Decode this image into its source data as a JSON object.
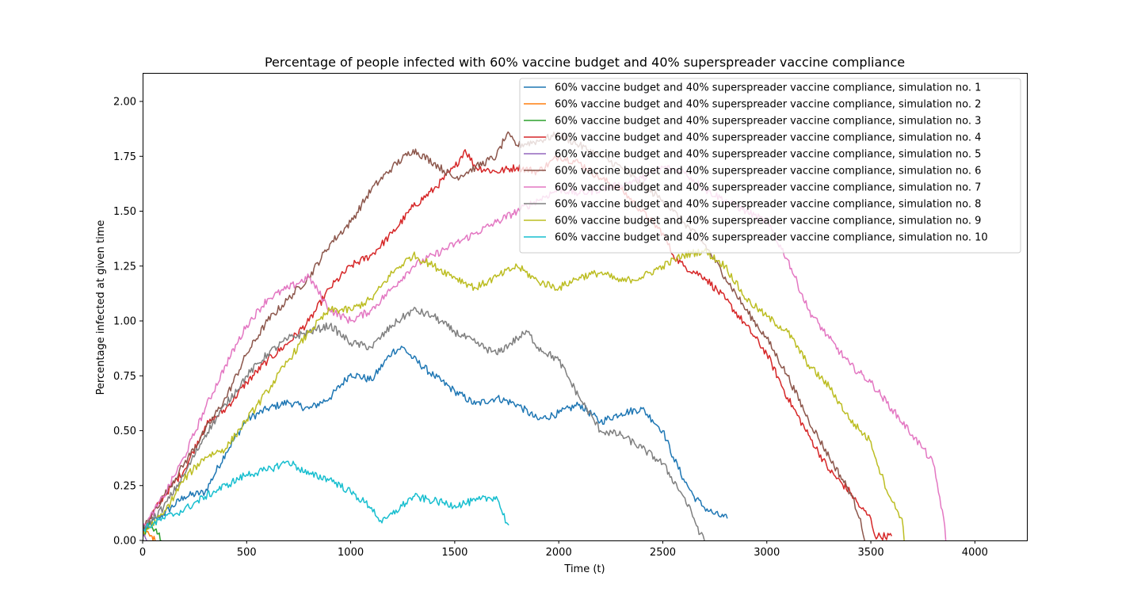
{
  "chart_data": {
    "type": "line",
    "title": "Percentage of people infected with 60% vaccine budget and 40% superspreader vaccine compliance",
    "xlabel": "Time (t)",
    "ylabel": "Percentage infected at given time",
    "xlim": [
      0,
      4250
    ],
    "ylim": [
      0,
      2.13
    ],
    "xticks": [
      0,
      500,
      1000,
      1500,
      2000,
      2500,
      3000,
      3500,
      4000
    ],
    "yticks": [
      0.0,
      0.25,
      0.5,
      0.75,
      1.0,
      1.25,
      1.5,
      1.75,
      2.0
    ],
    "xtick_labels": [
      "0",
      "500",
      "1000",
      "1500",
      "2000",
      "2500",
      "3000",
      "3500",
      "4000"
    ],
    "ytick_labels": [
      "0.00",
      "0.25",
      "0.50",
      "0.75",
      "1.00",
      "1.25",
      "1.50",
      "1.75",
      "2.00"
    ],
    "grid": false,
    "legend_position": "upper-right",
    "series": [
      {
        "name": "60% vaccine budget and 40% superspreader vaccine compliance, simulation no. 1",
        "color": "#1f77b4",
        "x": [
          0,
          100,
          200,
          300,
          400,
          500,
          600,
          700,
          800,
          900,
          1000,
          1100,
          1200,
          1250,
          1300,
          1400,
          1500,
          1600,
          1700,
          1800,
          1900,
          2000,
          2100,
          2200,
          2300,
          2400,
          2450,
          2500,
          2550,
          2600,
          2650,
          2700,
          2750,
          2810
        ],
        "y": [
          0.05,
          0.12,
          0.2,
          0.22,
          0.4,
          0.55,
          0.6,
          0.63,
          0.6,
          0.65,
          0.76,
          0.73,
          0.86,
          0.88,
          0.83,
          0.75,
          0.68,
          0.62,
          0.65,
          0.62,
          0.55,
          0.58,
          0.62,
          0.54,
          0.58,
          0.6,
          0.55,
          0.5,
          0.38,
          0.28,
          0.2,
          0.15,
          0.12,
          0.1
        ]
      },
      {
        "name": "60% vaccine budget and 40% superspreader vaccine compliance, simulation no. 2",
        "color": "#ff7f0e",
        "x": [
          0,
          15,
          30,
          45,
          60
        ],
        "y": [
          0.02,
          0.04,
          0.03,
          0.02,
          0.0
        ]
      },
      {
        "name": "60% vaccine budget and 40% superspreader vaccine compliance, simulation no. 3",
        "color": "#2ca02c",
        "x": [
          0,
          20,
          40,
          60,
          75,
          90
        ],
        "y": [
          0.02,
          0.06,
          0.08,
          0.05,
          0.03,
          0.0
        ]
      },
      {
        "name": "60% vaccine budget and 40% superspreader vaccine compliance, simulation no. 4",
        "color": "#d62728",
        "x": [
          0,
          100,
          200,
          300,
          400,
          500,
          600,
          700,
          800,
          900,
          1000,
          1100,
          1200,
          1300,
          1400,
          1500,
          1550,
          1600,
          1700,
          1800,
          1900,
          2000,
          2100,
          2200,
          2300,
          2400,
          2500,
          2550,
          2600,
          2700,
          2800,
          2900,
          3000,
          3100,
          3200,
          3300,
          3400,
          3450,
          3500,
          3520,
          3600
        ],
        "y": [
          0.05,
          0.2,
          0.32,
          0.52,
          0.6,
          0.72,
          0.82,
          0.9,
          1.0,
          1.15,
          1.25,
          1.3,
          1.4,
          1.52,
          1.6,
          1.7,
          1.78,
          1.7,
          1.68,
          1.7,
          1.68,
          1.75,
          1.72,
          1.65,
          1.6,
          1.5,
          1.4,
          1.3,
          1.25,
          1.2,
          1.1,
          0.98,
          0.85,
          0.65,
          0.48,
          0.32,
          0.22,
          0.15,
          0.1,
          0.02,
          0.02
        ]
      },
      {
        "name": "60% vaccine budget and 40% superspreader vaccine compliance, simulation no. 5",
        "color": "#9467bd",
        "x": [
          0,
          10,
          20
        ],
        "y": [
          0.01,
          0.02,
          0.0
        ]
      },
      {
        "name": "60% vaccine budget and 40% superspreader vaccine compliance, simulation no. 6",
        "color": "#8c564b",
        "x": [
          0,
          100,
          200,
          300,
          400,
          500,
          600,
          700,
          800,
          900,
          1000,
          1100,
          1200,
          1300,
          1400,
          1500,
          1600,
          1700,
          1750,
          1800,
          1900,
          2000,
          2100,
          2200,
          2300,
          2400,
          2500,
          2550,
          2600,
          2700,
          2800,
          2900,
          3000,
          3100,
          3200,
          3300,
          3400,
          3450,
          3470
        ],
        "y": [
          0.05,
          0.2,
          0.35,
          0.5,
          0.65,
          0.85,
          1.0,
          1.1,
          1.2,
          1.35,
          1.45,
          1.6,
          1.7,
          1.78,
          1.72,
          1.65,
          1.7,
          1.75,
          1.85,
          1.8,
          1.82,
          1.85,
          1.8,
          1.75,
          1.7,
          1.62,
          1.55,
          1.5,
          1.45,
          1.35,
          1.2,
          1.05,
          0.92,
          0.75,
          0.55,
          0.38,
          0.22,
          0.1,
          0.0
        ]
      },
      {
        "name": "60% vaccine budget and 40% superspreader vaccine compliance, simulation no. 7",
        "color": "#e377c2",
        "x": [
          0,
          100,
          200,
          300,
          400,
          500,
          600,
          700,
          800,
          900,
          1000,
          1100,
          1200,
          1300,
          1400,
          1500,
          1600,
          1700,
          1800,
          1900,
          2000,
          2100,
          2200,
          2300,
          2400,
          2500,
          2600,
          2700,
          2800,
          2900,
          3000,
          3100,
          3200,
          3300,
          3400,
          3500,
          3600,
          3700,
          3750,
          3800,
          3850,
          3860
        ],
        "y": [
          0.05,
          0.2,
          0.38,
          0.6,
          0.8,
          0.98,
          1.1,
          1.15,
          1.2,
          1.05,
          1.0,
          1.05,
          1.15,
          1.25,
          1.3,
          1.35,
          1.4,
          1.45,
          1.5,
          1.55,
          1.6,
          1.58,
          1.6,
          1.62,
          1.65,
          1.7,
          1.68,
          1.6,
          1.55,
          1.5,
          1.45,
          1.28,
          1.05,
          0.92,
          0.8,
          0.72,
          0.6,
          0.48,
          0.42,
          0.35,
          0.1,
          0.0
        ]
      },
      {
        "name": "60% vaccine budget and 40% superspreader vaccine compliance, simulation no. 8",
        "color": "#7f7f7f",
        "x": [
          0,
          100,
          200,
          300,
          400,
          500,
          600,
          700,
          800,
          900,
          1000,
          1100,
          1200,
          1300,
          1400,
          1500,
          1600,
          1700,
          1800,
          1850,
          1900,
          2000,
          2100,
          2200,
          2300,
          2400,
          2500,
          2600,
          2650,
          2680,
          2700
        ],
        "y": [
          0.05,
          0.15,
          0.3,
          0.48,
          0.62,
          0.75,
          0.85,
          0.92,
          0.95,
          0.98,
          0.9,
          0.88,
          0.98,
          1.05,
          1.02,
          0.95,
          0.9,
          0.85,
          0.92,
          0.95,
          0.88,
          0.82,
          0.65,
          0.5,
          0.48,
          0.42,
          0.35,
          0.2,
          0.1,
          0.03,
          0.0
        ]
      },
      {
        "name": "60% vaccine budget and 40% superspreader vaccine compliance, simulation no. 9",
        "color": "#bcbd22",
        "x": [
          0,
          100,
          200,
          300,
          400,
          500,
          600,
          700,
          800,
          900,
          1000,
          1100,
          1200,
          1300,
          1400,
          1500,
          1600,
          1700,
          1800,
          1900,
          2000,
          2100,
          2200,
          2300,
          2400,
          2500,
          2600,
          2700,
          2800,
          2900,
          3000,
          3100,
          3200,
          3300,
          3400,
          3500,
          3550,
          3600,
          3650,
          3660
        ],
        "y": [
          0.03,
          0.12,
          0.28,
          0.38,
          0.42,
          0.55,
          0.68,
          0.82,
          0.95,
          1.05,
          1.05,
          1.1,
          1.22,
          1.3,
          1.25,
          1.2,
          1.15,
          1.2,
          1.25,
          1.18,
          1.15,
          1.2,
          1.22,
          1.18,
          1.2,
          1.25,
          1.3,
          1.32,
          1.25,
          1.1,
          1.02,
          0.95,
          0.8,
          0.7,
          0.55,
          0.45,
          0.3,
          0.18,
          0.1,
          0.0
        ]
      },
      {
        "name": "60% vaccine budget and 40% superspreader vaccine compliance, simulation no. 10",
        "color": "#17becf",
        "x": [
          0,
          100,
          200,
          300,
          400,
          500,
          600,
          700,
          800,
          900,
          1000,
          1100,
          1150,
          1200,
          1300,
          1400,
          1500,
          1600,
          1700,
          1750,
          1760
        ],
        "y": [
          0.05,
          0.1,
          0.14,
          0.2,
          0.25,
          0.3,
          0.32,
          0.36,
          0.3,
          0.28,
          0.22,
          0.15,
          0.08,
          0.12,
          0.2,
          0.18,
          0.16,
          0.18,
          0.2,
          0.08,
          0.07
        ]
      }
    ]
  }
}
